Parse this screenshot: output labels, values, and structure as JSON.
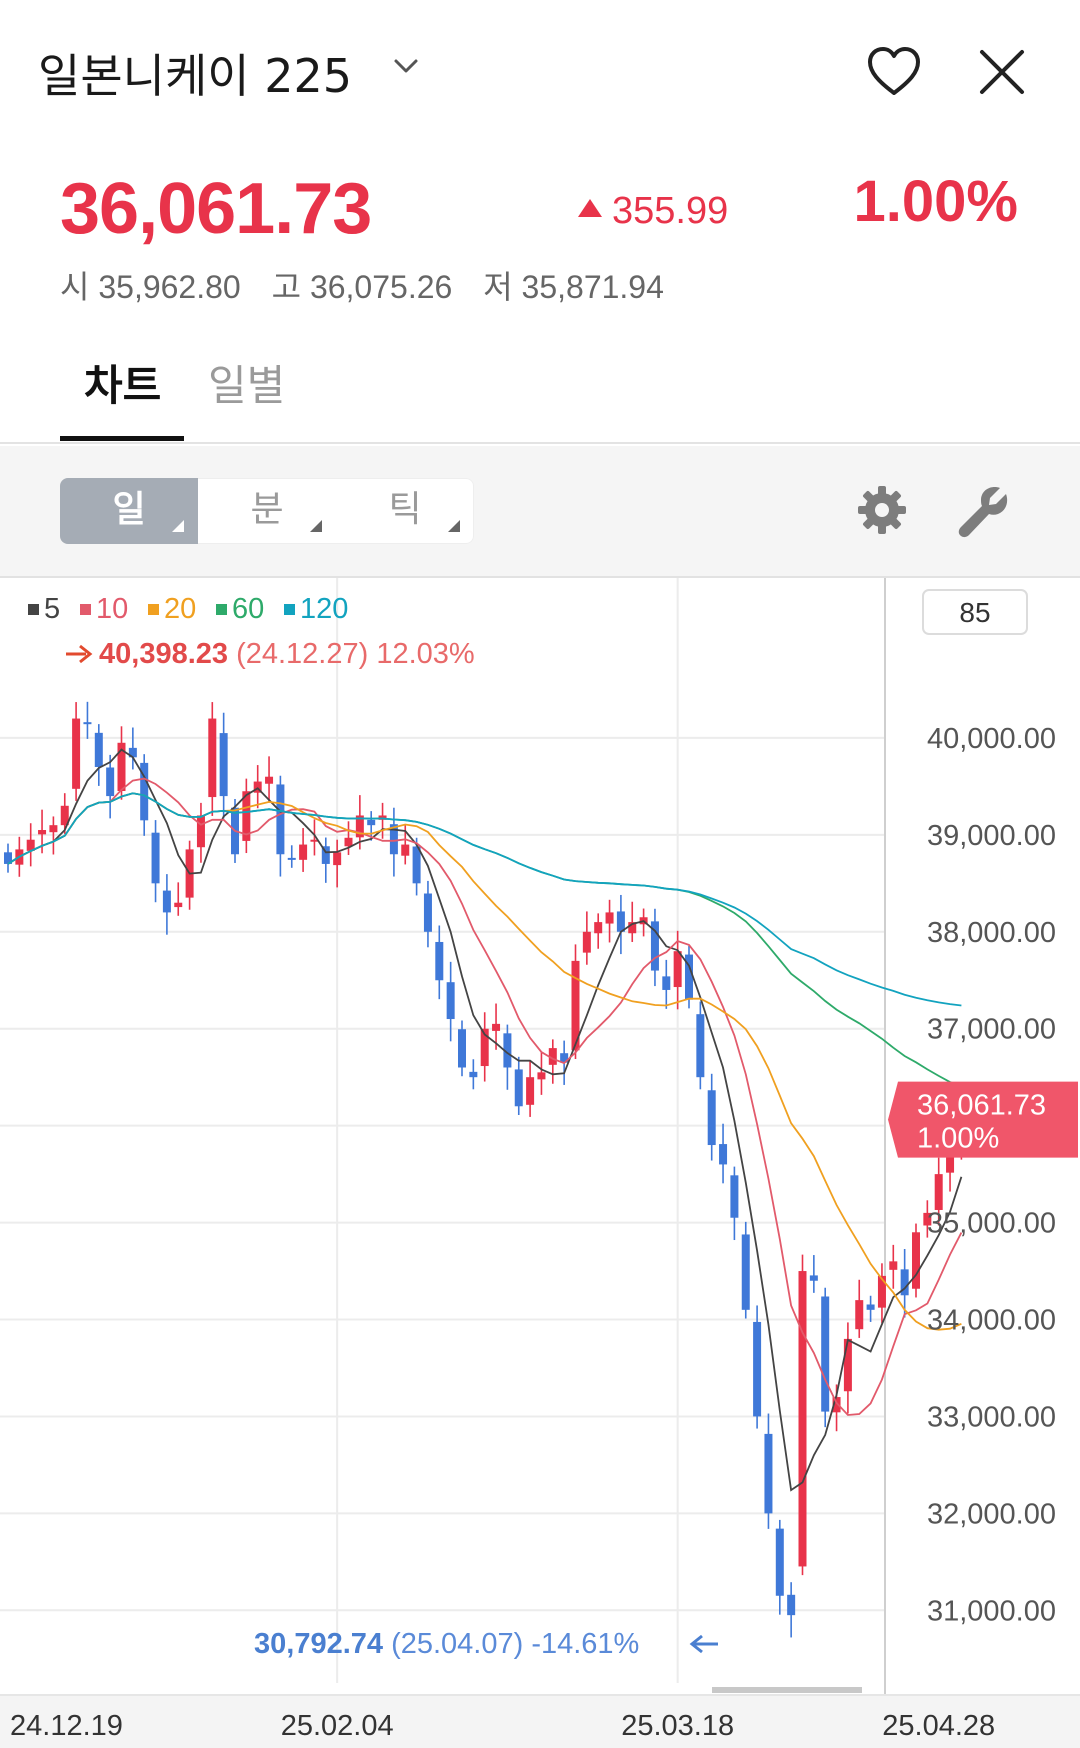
{
  "header": {
    "title": "일본니케이 225",
    "icons": {
      "dropdown": "chevron-down-icon",
      "favorite": "heart-icon",
      "close": "close-icon"
    }
  },
  "quote": {
    "price": "36,061.73",
    "change": "355.99",
    "change_pct": "1.00%",
    "open_label": "시",
    "open": "35,962.80",
    "high_label": "고",
    "high": "36,075.26",
    "low_label": "저",
    "low": "35,871.94",
    "up_color": "#e8334a"
  },
  "tabs": [
    {
      "label": "차트",
      "active": true
    },
    {
      "label": "일별",
      "active": false
    }
  ],
  "toolbar": {
    "periods": [
      {
        "label": "일",
        "active": true
      },
      {
        "label": "분",
        "active": false
      },
      {
        "label": "틱",
        "active": false
      }
    ],
    "icons": {
      "settings": "gear-icon",
      "tools": "wrench-icon"
    }
  },
  "chart_data": {
    "type": "candlestick",
    "legend": [
      {
        "label": "5",
        "color": "#444444"
      },
      {
        "label": "10",
        "color": "#e25a6b"
      },
      {
        "label": "20",
        "color": "#f0a020"
      },
      {
        "label": "60",
        "color": "#2eaa6a"
      },
      {
        "label": "120",
        "color": "#12a3bf"
      }
    ],
    "count_box": "85",
    "y_ticks": [
      "40,000.00",
      "39,000.00",
      "38,000.00",
      "37,000.00",
      "35,000.00",
      "34,000.00",
      "33,000.00",
      "32,000.00",
      "31,000.00"
    ],
    "y_tick_values": [
      40000,
      39000,
      38000,
      37000,
      35000,
      34000,
      33000,
      32000,
      31000
    ],
    "ylim": [
      30250,
      41650
    ],
    "x_ticks": [
      "24.12.19",
      "25.02.04",
      "25.03.18",
      "25.04.28"
    ],
    "x_tick_index": [
      0,
      29,
      59,
      82
    ],
    "current": {
      "value": 36061.73,
      "price": "36,061.73",
      "pct": "1.00%"
    },
    "max_annotation": {
      "value": "40,398.23",
      "date": "(24.12.27)",
      "pct": "12.03%"
    },
    "min_annotation": {
      "value": "30,792.74",
      "date": "(25.04.07)",
      "pct": "-14.61%"
    },
    "up_color": "#e8334a",
    "down_color": "#3f78d8",
    "close": [
      38700,
      38850,
      38950,
      39050,
      39100,
      39300,
      40200,
      40150,
      39700,
      39400,
      39950,
      39800,
      39150,
      38500,
      38200,
      38300,
      38850,
      39200,
      40200,
      39400,
      38800,
      39450,
      39550,
      39600,
      38800,
      38750,
      38900,
      38950,
      38700,
      38820,
      38970,
      39200,
      39100,
      39200,
      38800,
      38900,
      38500,
      38000,
      37500,
      37100,
      36600,
      36500,
      37000,
      37050,
      36600,
      36200,
      36500,
      36550,
      36800,
      36650,
      37700,
      38000,
      38100,
      38200,
      38000,
      38100,
      38150,
      37600,
      37400,
      37800,
      37300,
      36500,
      35800,
      35600,
      35050,
      34100,
      33000,
      32000,
      31150,
      30950,
      34500,
      34400,
      33050,
      33200,
      33800,
      34200,
      34100,
      34450,
      34600,
      34250,
      34900,
      35100,
      35500,
      35800,
      36061.73
    ]
  }
}
